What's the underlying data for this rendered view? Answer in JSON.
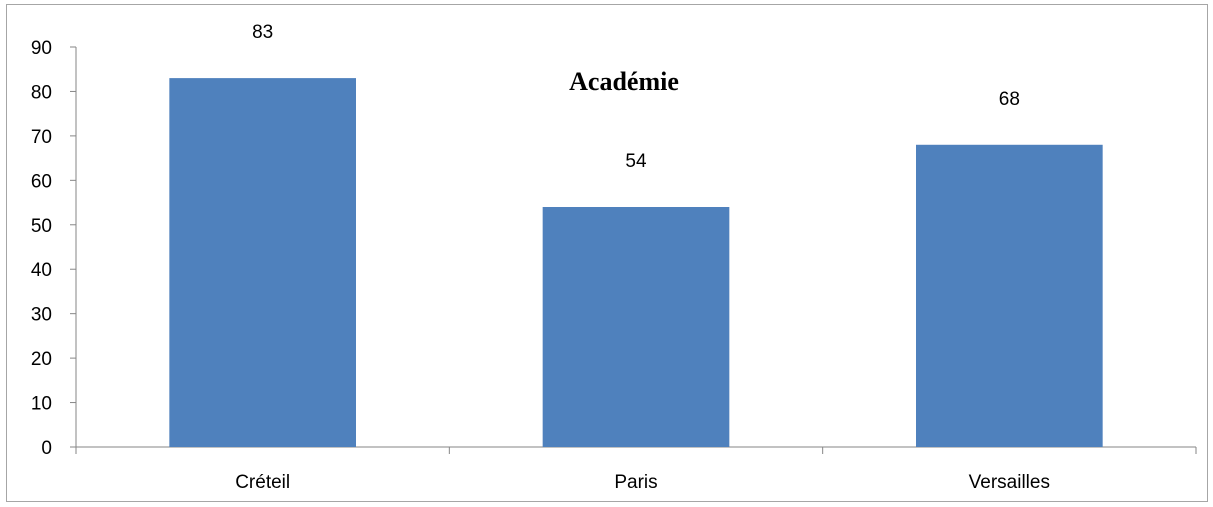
{
  "chart_data": {
    "type": "bar",
    "title": "Académie",
    "categories": [
      "Créteil",
      "Paris",
      "Versailles"
    ],
    "values": [
      83,
      54,
      68
    ],
    "data_labels": [
      "83",
      "54",
      "68"
    ],
    "ylim": [
      0,
      90
    ],
    "yticks": [
      "0",
      "10",
      "20",
      "30",
      "40",
      "50",
      "60",
      "70",
      "80",
      "90"
    ],
    "xlabel": "",
    "ylabel": "",
    "grid": false,
    "legend": "none",
    "bar_color": "#4F81BD",
    "axis_color": "#868686"
  }
}
